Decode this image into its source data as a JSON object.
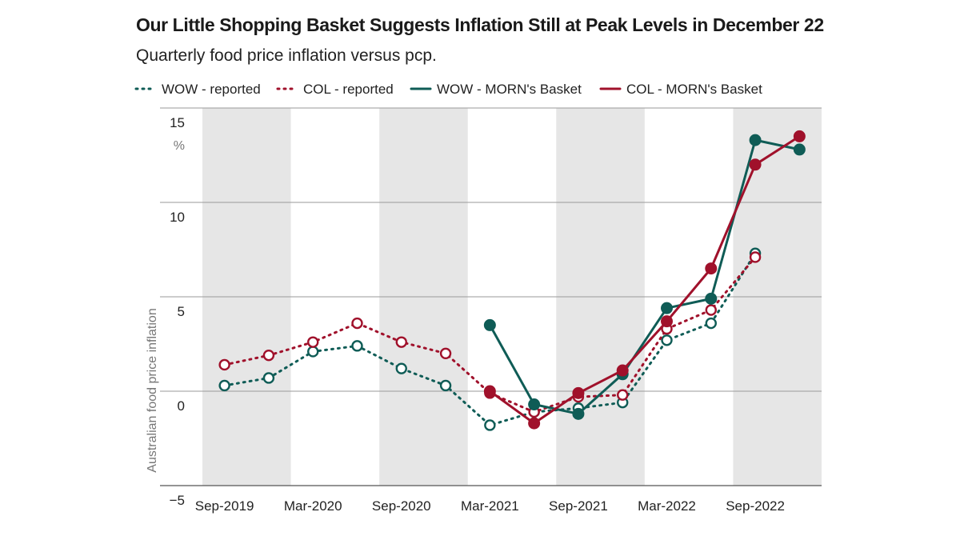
{
  "title": "Our Little Shopping Basket Suggests Inflation Still at Peak Levels in December 22",
  "subtitle": "Quarterly food price inflation versus pcp.",
  "chart_data": {
    "type": "line",
    "x": [
      "Sep-2019",
      "Dec-2019",
      "Mar-2020",
      "Jun-2020",
      "Sep-2020",
      "Dec-2020",
      "Mar-2021",
      "Jun-2021",
      "Sep-2021",
      "Dec-2021",
      "Mar-2022",
      "Jun-2022",
      "Sep-2022",
      "Dec-2022"
    ],
    "x_tick_labels": [
      "Sep-2019",
      "Mar-2020",
      "Sep-2020",
      "Mar-2021",
      "Sep-2021",
      "Mar-2022",
      "Sep-2022"
    ],
    "ylabel": "Australian food price inflation",
    "y_unit": "%",
    "ylim": [
      -5,
      15
    ],
    "y_ticks": [
      15,
      10,
      5,
      0,
      -5
    ],
    "y_tick_labels": [
      "15",
      "10",
      "5",
      "0",
      "−5"
    ],
    "grid": true,
    "legend_position": "top",
    "shaded_bands": "alternating half-years",
    "series": [
      {
        "name": "WOW - reported",
        "color": "#0f5c56",
        "style": "dotted",
        "marker": "open",
        "values": [
          0.3,
          0.7,
          2.1,
          2.4,
          1.2,
          0.3,
          -1.8,
          -1.1,
          -0.9,
          -0.6,
          2.7,
          3.6,
          7.3,
          null
        ]
      },
      {
        "name": "COL - reported",
        "color": "#a0112b",
        "style": "dotted",
        "marker": "open",
        "values": [
          1.4,
          1.9,
          2.6,
          3.6,
          2.6,
          2.0,
          -0.1,
          -1.1,
          -0.3,
          -0.2,
          3.3,
          4.3,
          7.1,
          null
        ]
      },
      {
        "name": "WOW - MORN's Basket",
        "color": "#0f5c56",
        "style": "solid",
        "marker": "filled",
        "values": [
          null,
          null,
          null,
          null,
          null,
          null,
          3.5,
          -0.7,
          -1.2,
          0.9,
          4.4,
          4.9,
          13.3,
          12.8
        ]
      },
      {
        "name": "COL - MORN's Basket",
        "color": "#a0112b",
        "style": "solid",
        "marker": "filled",
        "values": [
          null,
          null,
          null,
          null,
          null,
          null,
          0.0,
          -1.7,
          -0.1,
          1.1,
          3.7,
          6.5,
          12.0,
          13.5
        ]
      }
    ]
  }
}
